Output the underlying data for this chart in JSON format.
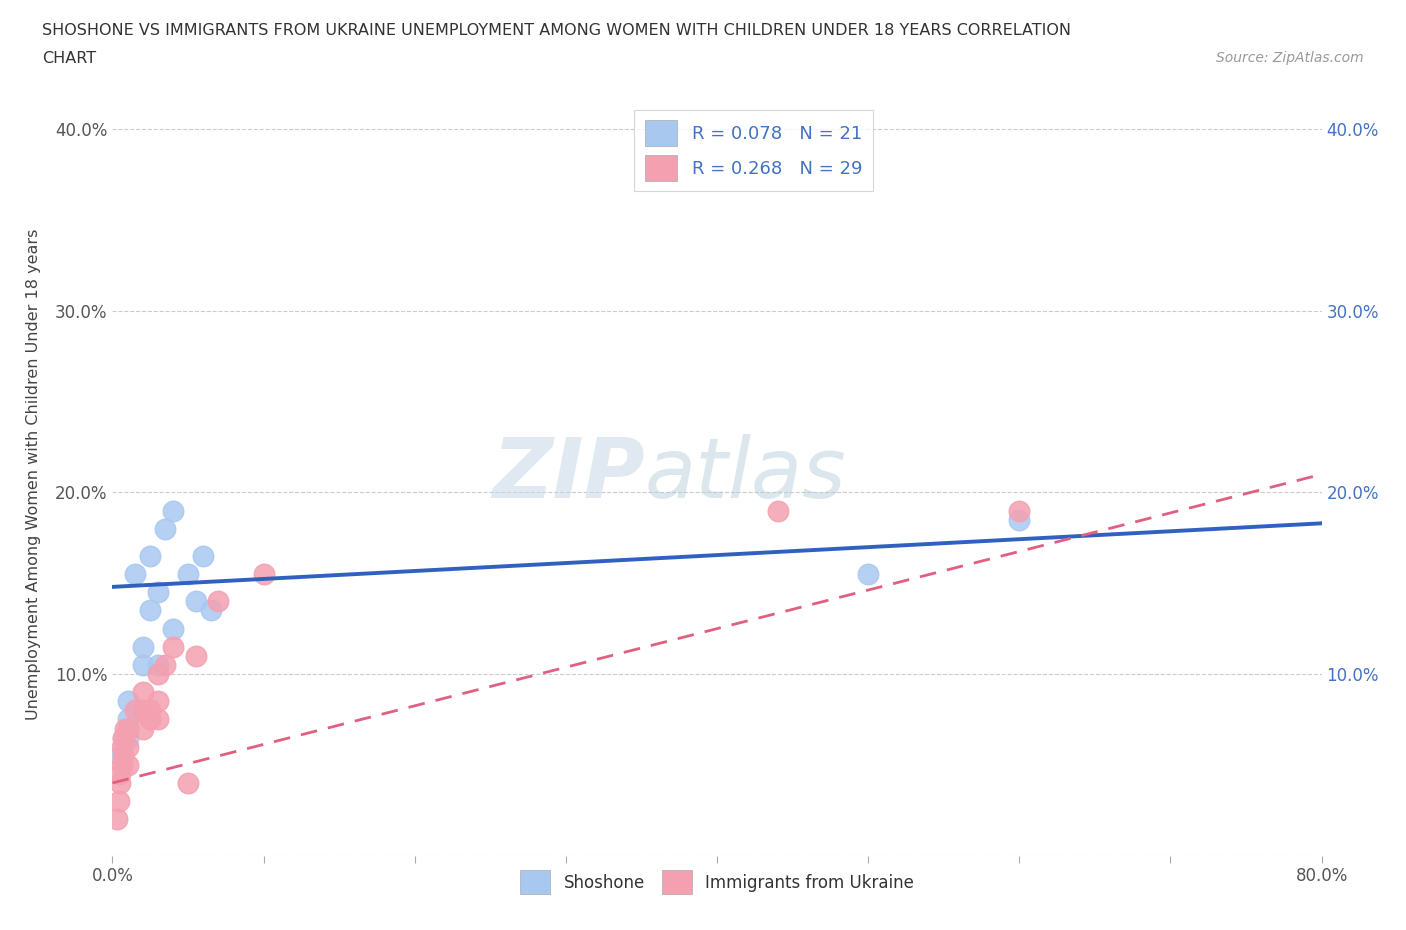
{
  "title_line1": "SHOSHONE VS IMMIGRANTS FROM UKRAINE UNEMPLOYMENT AMONG WOMEN WITH CHILDREN UNDER 18 YEARS CORRELATION",
  "title_line2": "CHART",
  "source": "Source: ZipAtlas.com",
  "ylabel": "Unemployment Among Women with Children Under 18 years",
  "xlim": [
    0.0,
    0.8
  ],
  "ylim": [
    0.0,
    0.42
  ],
  "xticks": [
    0.0,
    0.1,
    0.2,
    0.3,
    0.4,
    0.5,
    0.6,
    0.7,
    0.8
  ],
  "yticks": [
    0.0,
    0.1,
    0.2,
    0.3,
    0.4
  ],
  "shoshone_color": "#a8c8f0",
  "ukraine_color": "#f4a0b0",
  "shoshone_line_color": "#3060c0",
  "ukraine_line_color": "#e06080",
  "R_shoshone": 0.078,
  "N_shoshone": 21,
  "R_ukraine": 0.268,
  "N_ukraine": 29,
  "legend_label_shoshone": "Shoshone",
  "legend_label_ukraine": "Immigrants from Ukraine",
  "watermark_zip": "ZIP",
  "watermark_atlas": "atlas",
  "shoshone_x": [
    0.005,
    0.007,
    0.01,
    0.01,
    0.01,
    0.015,
    0.02,
    0.02,
    0.025,
    0.025,
    0.03,
    0.03,
    0.035,
    0.04,
    0.04,
    0.05,
    0.055,
    0.06,
    0.065,
    0.5,
    0.6
  ],
  "shoshone_y": [
    0.055,
    0.065,
    0.065,
    0.075,
    0.085,
    0.155,
    0.105,
    0.115,
    0.135,
    0.165,
    0.105,
    0.145,
    0.18,
    0.125,
    0.19,
    0.155,
    0.14,
    0.165,
    0.135,
    0.155,
    0.185
  ],
  "ukraine_x": [
    0.003,
    0.004,
    0.005,
    0.005,
    0.006,
    0.006,
    0.007,
    0.007,
    0.008,
    0.01,
    0.01,
    0.01,
    0.015,
    0.02,
    0.02,
    0.02,
    0.025,
    0.025,
    0.03,
    0.03,
    0.03,
    0.035,
    0.04,
    0.05,
    0.055,
    0.07,
    0.1,
    0.44,
    0.6
  ],
  "ukraine_y": [
    0.02,
    0.03,
    0.04,
    0.045,
    0.05,
    0.06,
    0.055,
    0.065,
    0.07,
    0.05,
    0.06,
    0.07,
    0.08,
    0.07,
    0.08,
    0.09,
    0.075,
    0.08,
    0.075,
    0.085,
    0.1,
    0.105,
    0.115,
    0.04,
    0.11,
    0.14,
    0.155,
    0.19,
    0.19
  ],
  "shoshone_line_x": [
    0.0,
    0.8
  ],
  "shoshone_line_y": [
    0.148,
    0.183
  ],
  "ukraine_line_x": [
    0.0,
    0.8
  ],
  "ukraine_line_y": [
    0.04,
    0.21
  ]
}
